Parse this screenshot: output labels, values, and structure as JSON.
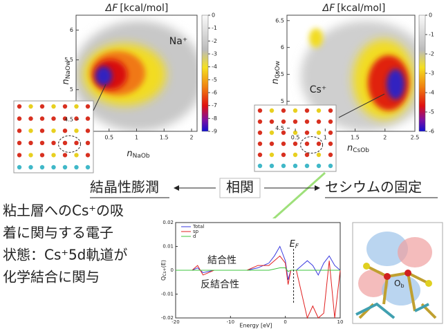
{
  "left_map": {
    "title_symbol": "ΔF",
    "title_unit": "[kcal/mol]",
    "ion": "Na⁺",
    "xlabel": "n",
    "xlabel_sub": "NaOb",
    "ylabel": "n",
    "ylabel_sub": "NaOw",
    "xlim": [
      -0.1,
      2.1
    ],
    "ylim": [
      4.3,
      6.25
    ],
    "xticks": [
      0.5,
      1,
      1.5,
      2
    ],
    "yticks": [
      4.5,
      5,
      5.5,
      6
    ],
    "clim": [
      -9,
      0
    ],
    "cticks": [
      0,
      -1,
      -2,
      -3,
      -4,
      -5,
      -6,
      -7,
      -8,
      -9
    ]
  },
  "right_map": {
    "title_symbol": "ΔF",
    "title_unit": "[kcal/mol]",
    "ion": "Cs⁺",
    "xlabel": "n",
    "xlabel_sub": "CsOb",
    "ylabel": "n",
    "ylabel_sub": "CsOw",
    "xlim": [
      0.36,
      2.5
    ],
    "ylim": [
      4.44,
      6.6
    ],
    "xticks": [
      0.5,
      1,
      1.5,
      2,
      2.5
    ],
    "yticks": [
      4.5,
      5,
      5.5,
      6,
      6.5
    ],
    "clim": [
      -6,
      0
    ],
    "cticks": [
      0,
      -1,
      -2,
      -3,
      -4,
      -5,
      -6
    ]
  },
  "relation": {
    "left": "結晶性膨潤",
    "center": "相関",
    "right": "セシウムの固定"
  },
  "description": [
    "粘土層へのCs⁺の吸",
    "着に関与する電子",
    "状態：Cs⁺5d軌道が",
    "化学結合に関与"
  ],
  "orbital": {
    "label": "O",
    "label_sub": "b"
  },
  "chart_data": {
    "type": "line",
    "xlabel": "Energy [eV]",
    "ylabel": "Q",
    "ylabel_sub": "Cs+",
    "ylabel_tail": "(E)",
    "x": [
      -20,
      -17,
      -16,
      -15,
      -13,
      -11,
      -9,
      -7,
      -5,
      -3,
      -2,
      -1,
      0,
      0.5,
      1,
      2,
      3,
      4,
      5,
      6,
      7,
      8,
      9,
      10
    ],
    "series": [
      {
        "name": "Total",
        "color": "#3a3adf",
        "values": [
          0,
          0,
          0.001,
          -0.001,
          0,
          0,
          0,
          0,
          0.001,
          0.003,
          0.006,
          0.01,
          0.004,
          -0.004,
          0,
          0,
          0.002,
          0.004,
          0.002,
          -0.002,
          0.003,
          0.006,
          0.002,
          0
        ]
      },
      {
        "name": "sp",
        "color": "#e02020",
        "values": [
          0,
          0,
          0.002,
          -0.002,
          0,
          0,
          0,
          0,
          0.002,
          0.002,
          0.004,
          0.006,
          0.003,
          -0.006,
          0,
          0,
          -0.01,
          -0.02,
          -0.015,
          -0.02,
          -0.018,
          0.004,
          -0.02,
          0
        ]
      },
      {
        "name": "d",
        "color": "#3cc43c",
        "values": [
          0,
          0,
          0,
          0,
          0,
          0,
          0,
          0,
          0,
          0,
          0.0005,
          0.001,
          0.001,
          -0.0005,
          0,
          0,
          0,
          0,
          0,
          0,
          0,
          0,
          0,
          0
        ]
      }
    ],
    "xlim": [
      -20,
      10
    ],
    "ylim": [
      -0.02,
      0.02
    ],
    "xticks": [
      -20,
      -10,
      0,
      10
    ],
    "yticks": [
      0.02,
      0.01,
      0,
      -0.01,
      -0.02
    ],
    "fermi": 1.5,
    "fermi_label": "E",
    "fermi_sub": "F",
    "bonding": "結合性",
    "antibonding": "反結合性"
  }
}
